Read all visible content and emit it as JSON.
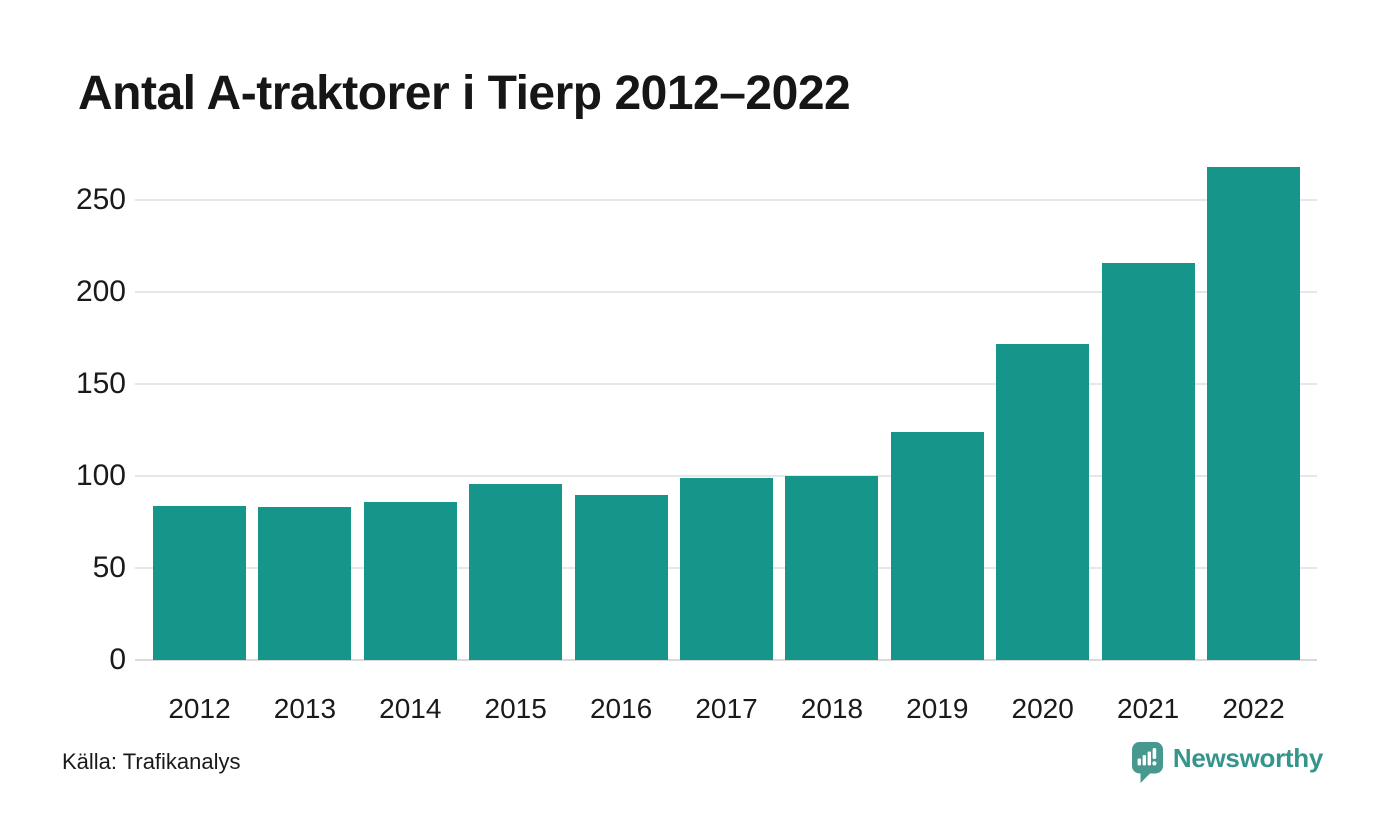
{
  "title": "Antal A-traktorer i Tierp 2012–2022",
  "source": "Källa: Trafikanalys",
  "logo": {
    "text": "Newsworthy"
  },
  "colors": {
    "bar": "#16968a",
    "gridline": "#e7e7e7",
    "zero_line": "#d9d9d9",
    "text": "#1a1a1a",
    "brand": "#35958c",
    "brand_icon": "#47998f"
  },
  "chart_data": {
    "type": "bar",
    "title": "Antal A-traktorer i Tierp 2012–2022",
    "categories": [
      "2012",
      "2013",
      "2014",
      "2015",
      "2016",
      "2017",
      "2018",
      "2019",
      "2020",
      "2021",
      "2022"
    ],
    "values": [
      84,
      83,
      86,
      96,
      90,
      99,
      100,
      124,
      172,
      216,
      268
    ],
    "xlabel": "",
    "ylabel": "",
    "ylim": [
      0,
      272
    ],
    "yticks": [
      0,
      50,
      100,
      150,
      200,
      250
    ],
    "grid": true,
    "legend": "none",
    "bar_color": "#16968a"
  }
}
